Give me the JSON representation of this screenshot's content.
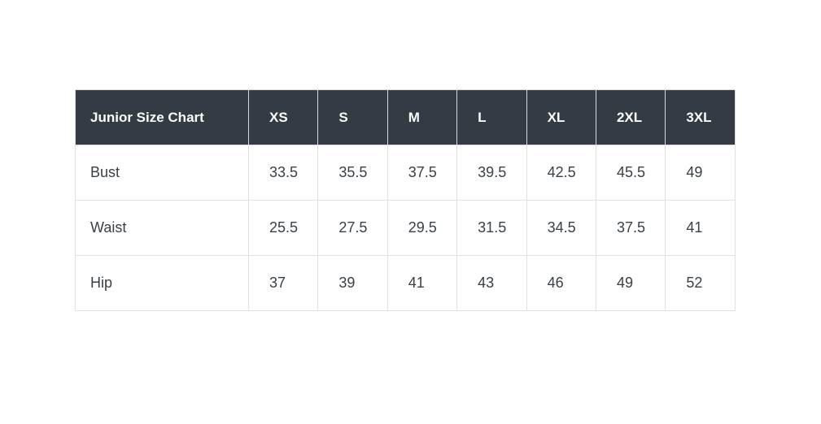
{
  "colors": {
    "page_background": "#ffffff",
    "header_background": "#353b44",
    "header_text": "#fdfdfd",
    "body_text": "#3a4047",
    "border": "#e1e1e1"
  },
  "chart_data": {
    "type": "table",
    "title": "Junior Size Chart",
    "columns": [
      "XS",
      "S",
      "M",
      "L",
      "XL",
      "2XL",
      "3XL"
    ],
    "rows": [
      {
        "label": "Bust",
        "values": [
          "33.5",
          "35.5",
          "37.5",
          "39.5",
          "42.5",
          "45.5",
          "49"
        ]
      },
      {
        "label": "Waist",
        "values": [
          "25.5",
          "27.5",
          "29.5",
          "31.5",
          "34.5",
          "37.5",
          "41"
        ]
      },
      {
        "label": "Hip",
        "values": [
          "37",
          "39",
          "41",
          "43",
          "46",
          "49",
          "52"
        ]
      }
    ]
  }
}
